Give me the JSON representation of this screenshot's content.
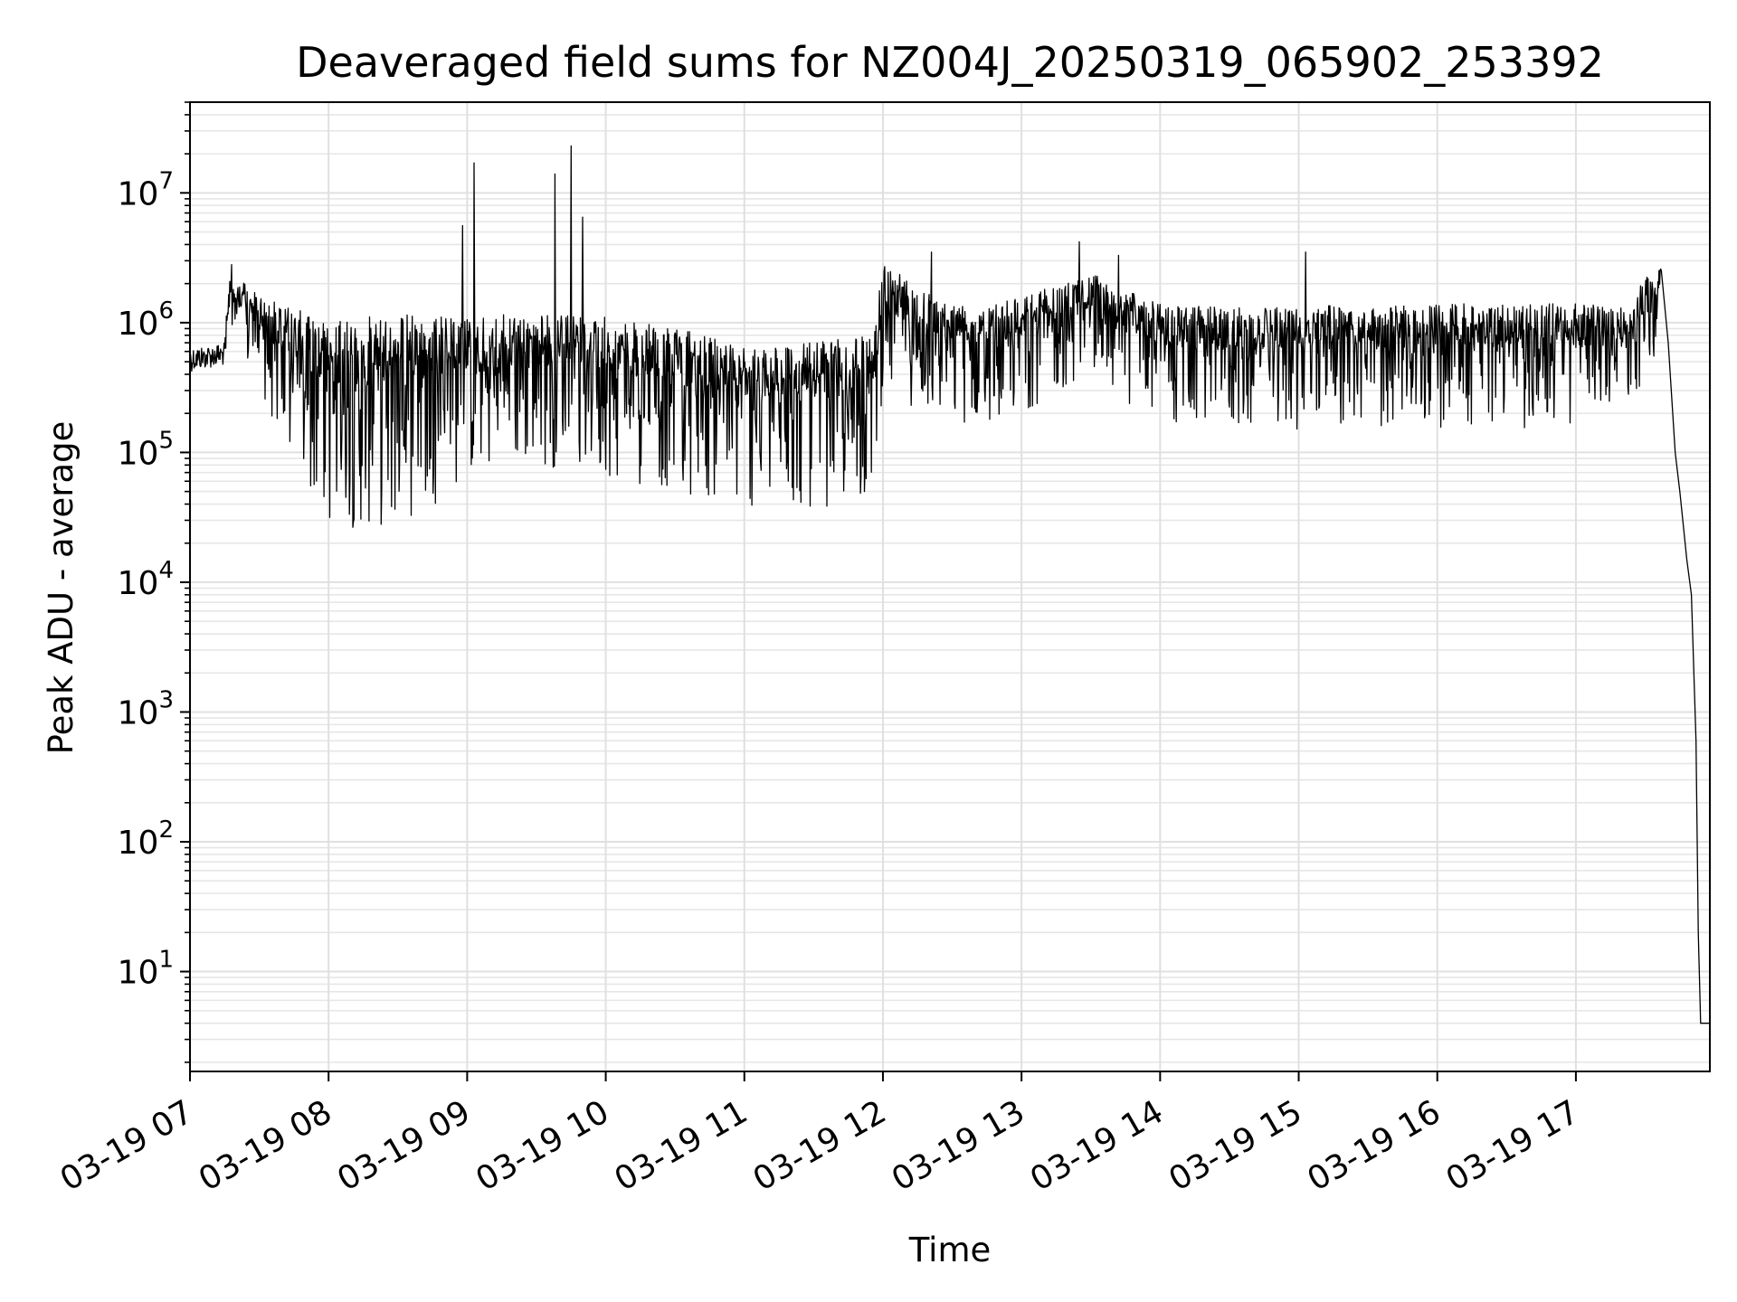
{
  "chart_data": {
    "type": "line",
    "title": "Deaveraged field sums for NZ004J_20250319_065902_253392",
    "xlabel": "Time",
    "ylabel": "Peak ADU - average",
    "yscale": "log",
    "grid": true,
    "xlim": [
      "03-19 07:00",
      "03-19 17:58"
    ],
    "ylim": [
      1.7,
      50000000
    ],
    "x_tick_labels": [
      "03-19 07",
      "03-19 08",
      "03-19 09",
      "03-19 10",
      "03-19 11",
      "03-19 12",
      "03-19 13",
      "03-19 14",
      "03-19 15",
      "03-19 16",
      "03-19 17"
    ],
    "y_tick_labels": [
      {
        "value": 10,
        "base": "10",
        "exp": "1"
      },
      {
        "value": 100,
        "base": "10",
        "exp": "2"
      },
      {
        "value": 1000,
        "base": "10",
        "exp": "3"
      },
      {
        "value": 10000,
        "base": "10",
        "exp": "4"
      },
      {
        "value": 100000,
        "base": "10",
        "exp": "5"
      },
      {
        "value": 1000000,
        "base": "10",
        "exp": "6"
      },
      {
        "value": 10000000,
        "base": "10",
        "exp": "7"
      }
    ],
    "series": [
      {
        "color": "#000000",
        "envelope": [
          {
            "t": "07:00",
            "low": 400000,
            "high": 650000
          },
          {
            "t": "07:15",
            "low": 450000,
            "high": 700000
          },
          {
            "t": "07:17",
            "low": 600000,
            "high": 2500000
          },
          {
            "t": "07:30",
            "low": 300000,
            "high": 1600000
          },
          {
            "t": "07:45",
            "low": 60000,
            "high": 1300000
          },
          {
            "t": "08:00",
            "low": 25000,
            "high": 1000000
          },
          {
            "t": "08:30",
            "low": 25000,
            "high": 1200000
          },
          {
            "t": "09:00",
            "low": 60000,
            "high": 1100000
          },
          {
            "t": "09:30",
            "low": 80000,
            "high": 1200000
          },
          {
            "t": "10:00",
            "low": 60000,
            "high": 1100000
          },
          {
            "t": "10:30",
            "low": 50000,
            "high": 900000
          },
          {
            "t": "11:00",
            "low": 35000,
            "high": 700000
          },
          {
            "t": "11:30",
            "low": 35000,
            "high": 700000
          },
          {
            "t": "11:55",
            "low": 40000,
            "high": 800000
          },
          {
            "t": "12:00",
            "low": 300000,
            "high": 2800000
          },
          {
            "t": "12:30",
            "low": 150000,
            "high": 1400000
          },
          {
            "t": "13:00",
            "low": 200000,
            "high": 1600000
          },
          {
            "t": "13:30",
            "low": 400000,
            "high": 2400000
          },
          {
            "t": "14:00",
            "low": 150000,
            "high": 1400000
          },
          {
            "t": "14:30",
            "low": 150000,
            "high": 1300000
          },
          {
            "t": "15:00",
            "low": 150000,
            "high": 1400000
          },
          {
            "t": "15:30",
            "low": 150000,
            "high": 1300000
          },
          {
            "t": "16:00",
            "low": 150000,
            "high": 1400000
          },
          {
            "t": "16:30",
            "low": 150000,
            "high": 1400000
          },
          {
            "t": "17:00",
            "low": 150000,
            "high": 1400000
          },
          {
            "t": "17:25",
            "low": 250000,
            "high": 1300000
          },
          {
            "t": "17:30",
            "low": 400000,
            "high": 2600000
          }
        ],
        "spikes": [
          {
            "t": "07:18",
            "value": 2800000
          },
          {
            "t": "08:58",
            "value": 5600000
          },
          {
            "t": "09:03",
            "value": 17000000
          },
          {
            "t": "09:38",
            "value": 14000000
          },
          {
            "t": "09:45",
            "value": 23000000
          },
          {
            "t": "09:50",
            "value": 6500000
          },
          {
            "t": "12:21",
            "value": 3500000
          },
          {
            "t": "13:25",
            "value": 4200000
          },
          {
            "t": "13:42",
            "value": 3300000
          },
          {
            "t": "15:03",
            "value": 3500000
          },
          {
            "t": "17:37",
            "value": 2900000
          }
        ],
        "tail": [
          {
            "t": "17:37",
            "value": 2500000
          },
          {
            "t": "17:40",
            "value": 700000
          },
          {
            "t": "17:43",
            "value": 100000
          },
          {
            "t": "17:45",
            "value": 50000
          },
          {
            "t": "17:48",
            "value": 15000
          },
          {
            "t": "17:50",
            "value": 8000
          },
          {
            "t": "17:52",
            "value": 600
          },
          {
            "t": "17:53",
            "value": 20
          },
          {
            "t": "17:54",
            "value": 4
          },
          {
            "t": "17:58",
            "value": 4
          }
        ]
      }
    ]
  }
}
